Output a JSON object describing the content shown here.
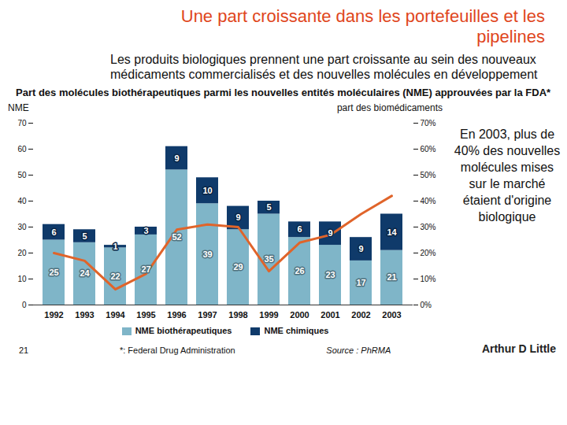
{
  "page": {
    "title": "Une part croissante dans les portefeuilles et les pipelines",
    "subtitle": "Les produits biologiques prennent une part croissante au sein des nouveaux médicaments commercialisés et des nouvelles molécules en développement",
    "annotation": "En 2003, plus de 40% des nouvelles molécules mises sur le marché étaient d'origine biologique",
    "footnote": "*: Federal Drug Administration",
    "page_number": "21",
    "source": "Source : PhRMA",
    "logo": "Arthur D Little"
  },
  "chart_data": {
    "type": "bar",
    "stacked": true,
    "data_labels": true,
    "legend": "bottom",
    "title": "Part des molécules biothérapeutiques parmi les nouvelles entités moléculaires (NME) approuvées par la FDA*",
    "y_label": "NME",
    "categories": [
      "1992",
      "1993",
      "1994",
      "1995",
      "1996",
      "1997",
      "1998",
      "1999",
      "2000",
      "2001",
      "2002",
      "2003"
    ],
    "series": [
      {
        "name": "NME biothérapeutiques",
        "type": "bar",
        "color": "#7fb5c8",
        "values": [
          25,
          24,
          22,
          27,
          52,
          39,
          29,
          35,
          26,
          23,
          17,
          21
        ]
      },
      {
        "name": "NME chimiques",
        "type": "bar",
        "color": "#0f3a6a",
        "values": [
          6,
          5,
          1,
          3,
          9,
          10,
          9,
          5,
          6,
          9,
          9,
          14
        ]
      },
      {
        "name": "part des biomédicaments",
        "type": "line",
        "axis": "y2",
        "color": "#e0642a",
        "marker": "none",
        "line_style": "solid",
        "values": [
          20,
          17,
          6,
          12,
          29,
          31,
          30,
          13,
          24,
          27,
          35,
          42
        ]
      }
    ],
    "ylim": [
      0,
      70
    ],
    "yticks": [
      0,
      10,
      20,
      30,
      40,
      50,
      60,
      70
    ],
    "y2lim": [
      0,
      70
    ],
    "y2ticks": [
      {
        "value": 0,
        "label": "0%"
      },
      {
        "value": 10,
        "label": "10%"
      },
      {
        "value": 20,
        "label": "20%"
      },
      {
        "value": 30,
        "label": "30%"
      },
      {
        "value": 40,
        "label": "40%"
      },
      {
        "value": 50,
        "label": "50%"
      },
      {
        "value": 60,
        "label": "60%"
      },
      {
        "value": 70,
        "label": "70%"
      }
    ]
  }
}
